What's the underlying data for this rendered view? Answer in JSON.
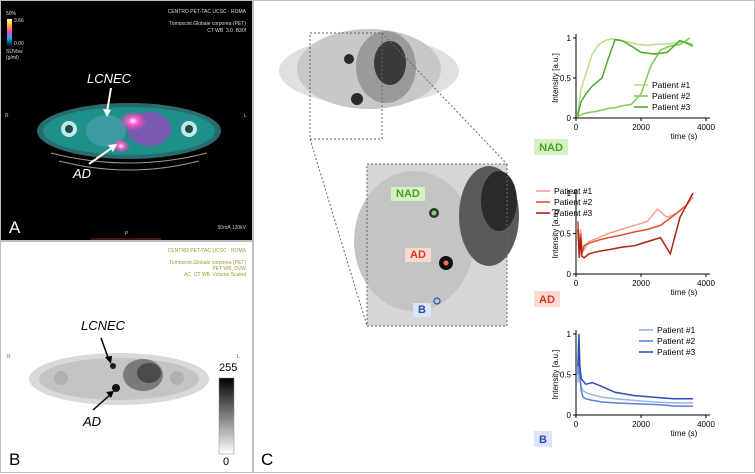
{
  "panel_a": {
    "label": "A",
    "header_right_1": "CENTRO PET-TAC UCSC - ROMA",
    "header_right_2": "Tomoscint.Globale corporea (PET)",
    "header_right_3": "CT WB  3.0  B30f",
    "colorbar_top": "50%",
    "colorbar_max": "3.66",
    "colorbar_min": "0.00",
    "units_1": "SUVbw",
    "units_2": "(g/ml)",
    "side_left": "R",
    "side_right": "L",
    "bottom_info": "90mA 120kV",
    "bottom_mark": "P",
    "arrow_label_1": "LCNEC",
    "arrow_label_2": "AD"
  },
  "panel_b": {
    "label": "B",
    "header_1": "CENTRO PET-TAC UCSC - ROMA",
    "header_2": "Tomoscint.Globale corporea (PET)",
    "header_3": "PET WB_DVW",
    "header_4": "AC  CT WB  Volume Scaled",
    "side_left": "R",
    "side_right": "L",
    "arrow_label_1": "LCNEC",
    "arrow_label_2": "AD",
    "scale_max": "255",
    "scale_min": "0"
  },
  "panel_c": {
    "label": "C",
    "roi_nad": "NAD",
    "roi_ad": "AD",
    "roi_b": "B"
  },
  "chart_data": [
    {
      "type": "line",
      "name": "NAD",
      "xlabel": "time (s)",
      "ylabel": "Intensity [a.u.]",
      "xlim": [
        0,
        4000
      ],
      "ylim": [
        0,
        1
      ],
      "xticks": [
        "0",
        "2000",
        "4000"
      ],
      "yticks": [
        "0",
        "0.5",
        "1"
      ],
      "legend": "right",
      "series": [
        {
          "name": "Patient #1",
          "color": "#b8e08a",
          "x": [
            50,
            150,
            300,
            500,
            700,
            900,
            1100,
            1300,
            1600,
            1900,
            2200,
            2500,
            2900,
            3300,
            3600
          ],
          "y": [
            0.05,
            0.35,
            0.55,
            0.8,
            0.92,
            0.97,
            0.99,
            0.97,
            0.95,
            0.92,
            0.91,
            0.92,
            0.93,
            0.95,
            0.93
          ]
        },
        {
          "name": "Patient #2",
          "color": "#7fcc4e",
          "x": [
            50,
            200,
            400,
            600,
            800,
            1000,
            1200,
            1400,
            1700,
            2000,
            2300,
            2600,
            2900,
            3200,
            3500
          ],
          "y": [
            0.02,
            0.05,
            0.07,
            0.08,
            0.1,
            0.12,
            0.13,
            0.15,
            0.17,
            0.3,
            0.65,
            0.85,
            0.9,
            0.92,
            1.0
          ]
        },
        {
          "name": "Patient #3",
          "color": "#4ea82a",
          "x": [
            50,
            150,
            300,
            500,
            800,
            1000,
            1200,
            1400,
            1700,
            2000,
            2400,
            2800,
            3200,
            3600
          ],
          "y": [
            0.02,
            0.2,
            0.3,
            0.4,
            0.5,
            0.75,
            0.98,
            0.97,
            0.9,
            0.82,
            0.8,
            0.82,
            0.97,
            0.9
          ]
        }
      ]
    },
    {
      "type": "line",
      "name": "AD",
      "xlabel": "time (s)",
      "ylabel": "Intensity [a.u.]",
      "xlim": [
        0,
        4000
      ],
      "ylim": [
        0,
        1
      ],
      "xticks": [
        "0",
        "2000",
        "4000"
      ],
      "yticks": [
        "0",
        "0.5",
        "1"
      ],
      "legend": "top-left",
      "series": [
        {
          "name": "Patient #1",
          "color": "#f0a090",
          "x": [
            60,
            100,
            140,
            180,
            250,
            400,
            700,
            1000,
            1400,
            1800,
            2200,
            2500,
            2800,
            3100,
            3400,
            3600
          ],
          "y": [
            0.6,
            0.25,
            0.55,
            0.35,
            0.3,
            0.4,
            0.45,
            0.5,
            0.55,
            0.6,
            0.65,
            0.8,
            0.7,
            0.75,
            0.85,
            0.95
          ]
        },
        {
          "name": "Patient #2",
          "color": "#e05030",
          "x": [
            60,
            100,
            140,
            180,
            250,
            400,
            700,
            1000,
            1400,
            1800,
            2200,
            2600,
            3000,
            3400,
            3600
          ],
          "y": [
            0.65,
            0.3,
            0.5,
            0.25,
            0.35,
            0.38,
            0.42,
            0.45,
            0.48,
            0.52,
            0.55,
            0.6,
            0.72,
            0.85,
            1.0
          ]
        },
        {
          "name": "Patient #3",
          "color": "#b02010",
          "x": [
            60,
            100,
            140,
            180,
            250,
            400,
            700,
            1000,
            1400,
            1800,
            2200,
            2600,
            2900,
            3200,
            3400,
            3600
          ],
          "y": [
            0.55,
            0.2,
            0.45,
            0.22,
            0.2,
            0.25,
            0.28,
            0.3,
            0.33,
            0.35,
            0.4,
            0.45,
            0.25,
            0.7,
            0.85,
            1.0
          ]
        }
      ]
    },
    {
      "type": "line",
      "name": "B",
      "xlabel": "time (s)",
      "ylabel": "Intensity [a.u.]",
      "xlim": [
        0,
        4000
      ],
      "ylim": [
        0,
        1
      ],
      "xticks": [
        "0",
        "2000",
        "4000"
      ],
      "yticks": [
        "0",
        "0.5",
        "1"
      ],
      "legend": "top-right",
      "series": [
        {
          "name": "Patient #1",
          "color": "#9ab4e6",
          "x": [
            60,
            90,
            120,
            160,
            220,
            300,
            500,
            800,
            1200,
            1800,
            2400,
            3000,
            3600
          ],
          "y": [
            0.4,
            0.8,
            0.5,
            0.35,
            0.3,
            0.28,
            0.25,
            0.22,
            0.2,
            0.18,
            0.16,
            0.15,
            0.15
          ]
        },
        {
          "name": "Patient #2",
          "color": "#5a7ed8",
          "x": [
            60,
            90,
            120,
            160,
            220,
            300,
            500,
            800,
            1200,
            1800,
            2400,
            2800,
            3000,
            3600
          ],
          "y": [
            0.5,
            0.9,
            0.45,
            0.3,
            0.22,
            0.2,
            0.18,
            0.16,
            0.15,
            0.14,
            0.13,
            0.12,
            0.11,
            0.11
          ]
        },
        {
          "name": "Patient #3",
          "color": "#2a4eb8",
          "x": [
            60,
            90,
            120,
            160,
            220,
            300,
            500,
            800,
            1200,
            1800,
            2400,
            3000,
            3600
          ],
          "y": [
            0.6,
            1.0,
            0.6,
            0.45,
            0.42,
            0.38,
            0.4,
            0.35,
            0.28,
            0.24,
            0.22,
            0.2,
            0.2
          ]
        }
      ]
    }
  ],
  "chart_tags": [
    {
      "text": "NAD",
      "bg": "#d6f0c2",
      "fg": "#4aa02a"
    },
    {
      "text": "AD",
      "bg": "#fbd9d3",
      "fg": "#d43a20"
    },
    {
      "text": "B",
      "bg": "#dce4f6",
      "fg": "#2a4eb8"
    }
  ]
}
